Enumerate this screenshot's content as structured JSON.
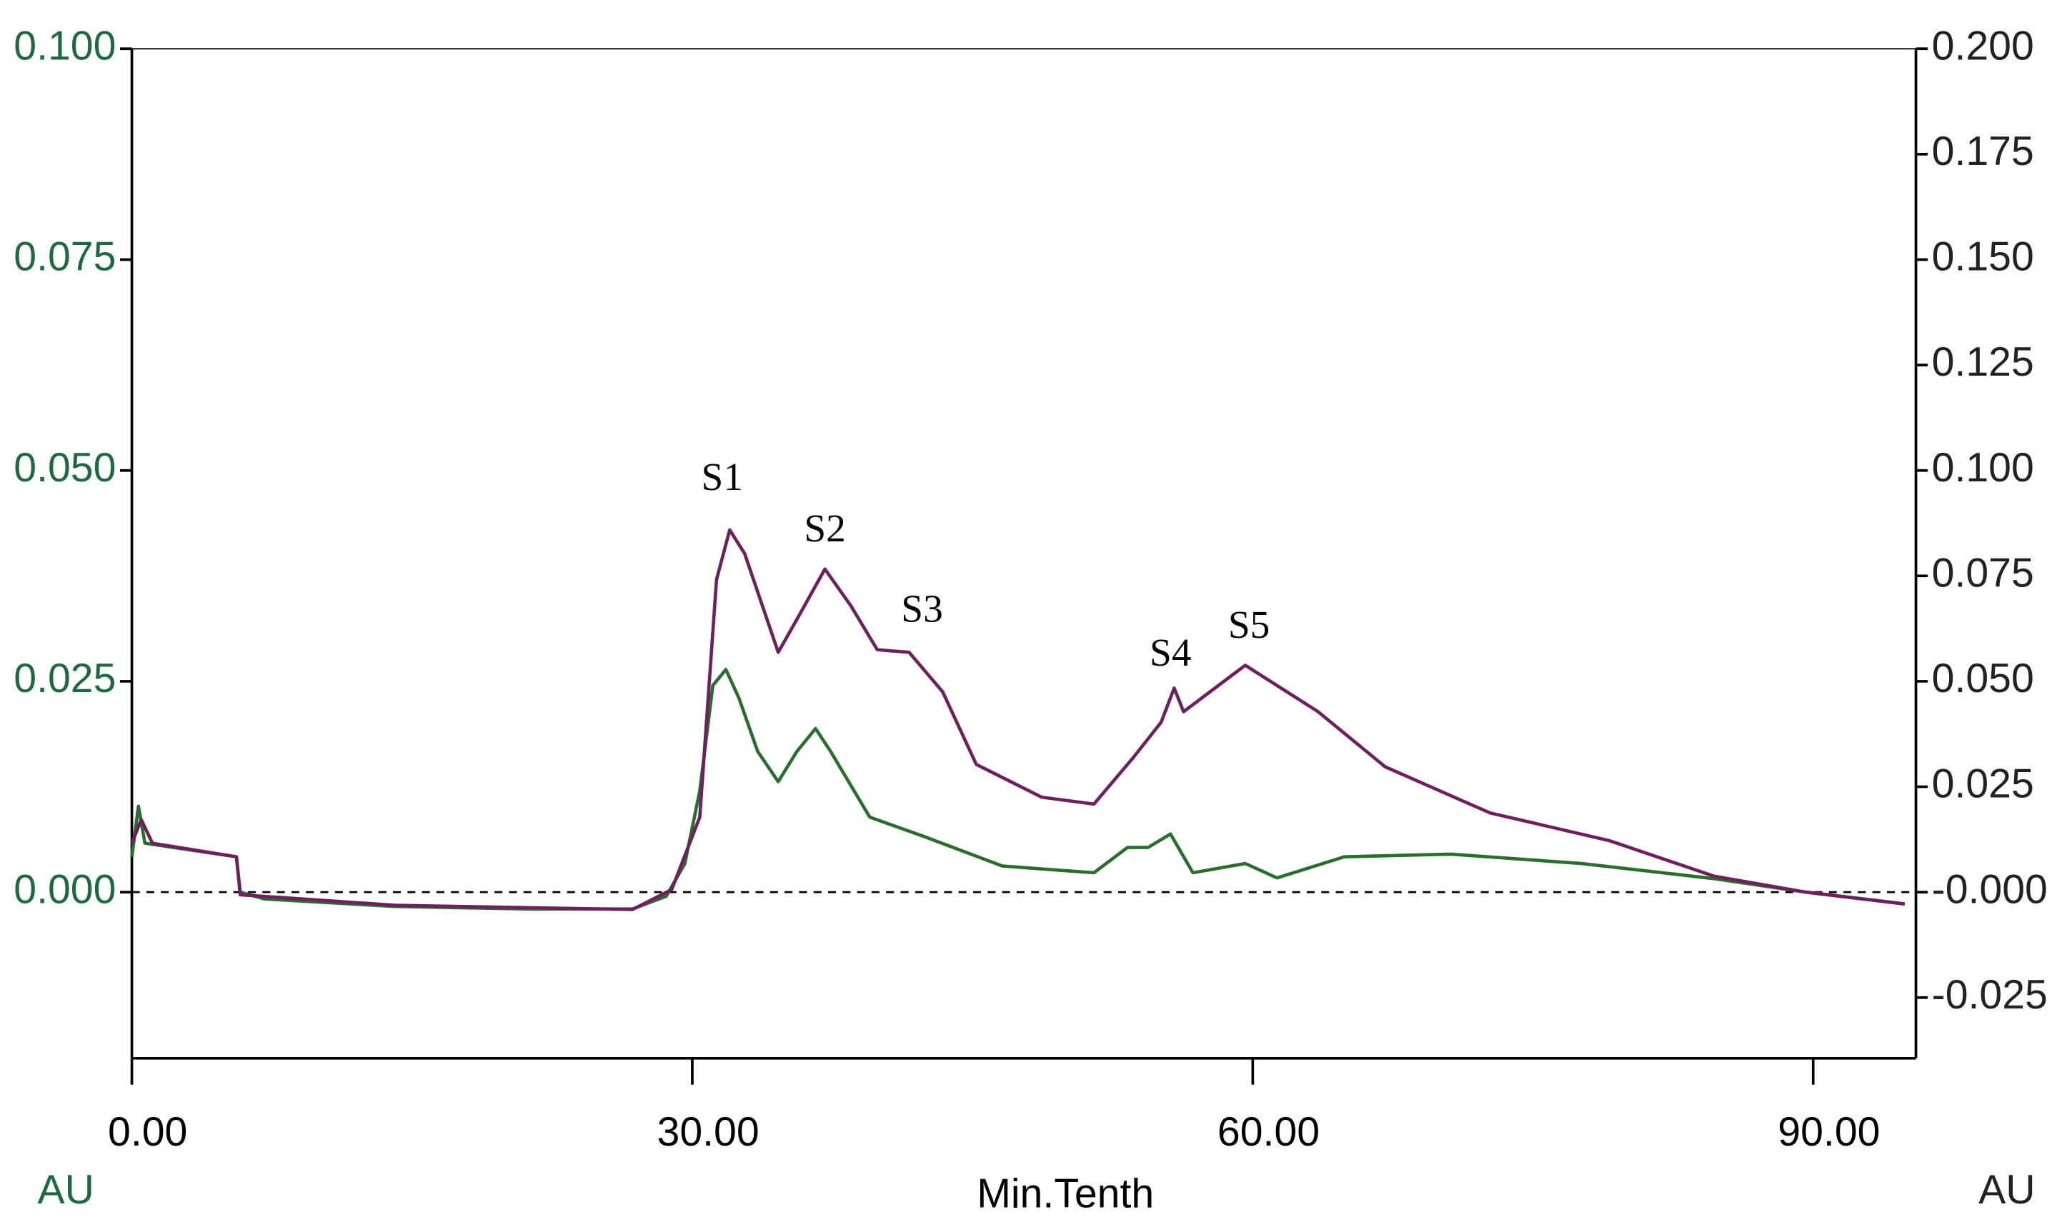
{
  "chart_data": {
    "type": "line",
    "x_label": "Min.Tenth",
    "y_label": "AU",
    "y2_label": "AU",
    "xlim": [
      0,
      95.5
    ],
    "xticks": [
      {
        "value": 0,
        "label": "0.00"
      },
      {
        "value": 30,
        "label": "30.00"
      },
      {
        "value": 60,
        "label": "60.00"
      },
      {
        "value": 90,
        "label": "90.00"
      }
    ],
    "ylim": [
      -0.0197,
      0.1
    ],
    "yticks": [
      {
        "value": 0,
        "label": "0.000"
      },
      {
        "value": 0.025,
        "label": "0.025"
      },
      {
        "value": 0.05,
        "label": "0.050"
      },
      {
        "value": 0.075,
        "label": "0.075"
      },
      {
        "value": 0.1,
        "label": "0.100"
      }
    ],
    "y2lim": [
      -0.0394,
      0.2
    ],
    "y2ticks": [
      {
        "value": -0.025,
        "label": "-0.025"
      },
      {
        "value": 0,
        "label": "-0.000"
      },
      {
        "value": 0.025,
        "label": "0.025"
      },
      {
        "value": 0.05,
        "label": "0.050"
      },
      {
        "value": 0.075,
        "label": "0.075"
      },
      {
        "value": 0.1,
        "label": "0.100"
      },
      {
        "value": 0.125,
        "label": "0.125"
      },
      {
        "value": 0.15,
        "label": "0.150"
      },
      {
        "value": 0.175,
        "label": "0.175"
      },
      {
        "value": 0.2,
        "label": "0.200"
      }
    ],
    "y_color": "#1d6b3c",
    "y2_color": "#222222",
    "series": [
      {
        "color": "#2a6e2e",
        "axis": "y",
        "x": [
          0,
          0.35,
          0.7,
          5.6,
          5.8,
          7.1,
          14.1,
          21.2,
          26.8,
          28.6,
          29.6,
          30.4,
          31.1,
          31.8,
          32.5,
          33.5,
          34.6,
          35.6,
          36.6,
          37.4,
          39.5,
          42.4,
          46.6,
          51.5,
          53.3,
          54.4,
          55.6,
          56.8,
          59.6,
          61.3,
          64.9,
          70.6,
          77.6,
          84.7,
          89.6,
          94.9
        ],
        "values": [
          0.0042,
          0.0102,
          0.0058,
          0.0042,
          0,
          -0.0008,
          -0.0017,
          -0.002,
          -0.002,
          -0.0005,
          0.0034,
          0.012,
          0.0245,
          0.0264,
          0.023,
          0.0167,
          0.0131,
          0.0167,
          0.0194,
          0.0167,
          0.0089,
          0.0066,
          0.0031,
          0.0023,
          0.0053,
          0.0053,
          0.0069,
          0.0023,
          0.0034,
          0.0017,
          0.0042,
          0.0045,
          0.0034,
          0.0016,
          0,
          -0.0014
        ]
      },
      {
        "color": "#6e1f5e",
        "axis": "y2",
        "x": [
          0,
          0.5,
          1.1,
          5.6,
          5.8,
          14.1,
          26.8,
          28.9,
          30.4,
          31.3,
          32.0,
          32.8,
          34.6,
          35.6,
          37.1,
          38.5,
          39.9,
          41.6,
          43.4,
          45.2,
          48.7,
          51.5,
          53.6,
          55.1,
          55.8,
          56.3,
          59.6,
          63.5,
          67.1,
          72.7,
          79.1,
          84.7,
          89.6,
          94.9
        ],
        "values": [
          0.0116,
          0.0172,
          0.0116,
          0.0084,
          -0.0006,
          -0.0031,
          -0.0041,
          0.0006,
          0.0178,
          0.0741,
          0.0859,
          0.0803,
          0.0569,
          0.0647,
          0.0766,
          0.0678,
          0.0575,
          0.0569,
          0.0475,
          0.0303,
          0.0225,
          0.0209,
          0.0319,
          0.0403,
          0.0484,
          0.0428,
          0.0538,
          0.0428,
          0.0297,
          0.0188,
          0.0122,
          0.0038,
          0,
          -0.0028
        ]
      }
    ],
    "annotations": [
      {
        "text": "S1",
        "x": 31.6,
        "y2": 0.0975
      },
      {
        "text": "S2",
        "x": 37.1,
        "y2": 0.0853
      },
      {
        "text": "S3",
        "x": 42.3,
        "y2": 0.0663
      },
      {
        "text": "S4",
        "x": 55.6,
        "y2": 0.0559
      },
      {
        "text": "S5",
        "x": 59.8,
        "y2": 0.0625
      }
    ]
  }
}
